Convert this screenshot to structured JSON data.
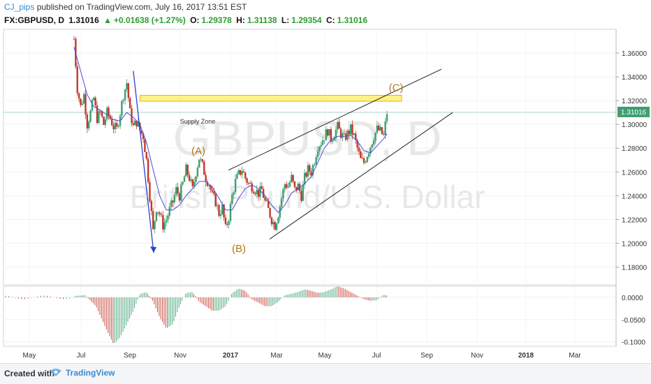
{
  "header": {
    "username": "CJ_pips",
    "published_text": " published on TradingView.com, July 16, 2017 13:51 EST",
    "symbol": "FX:GBPUSD, D",
    "last": "1.31016",
    "change": "+0.01638 (+1.27%)",
    "o_label": "O:",
    "o_value": "1.29378",
    "h_label": "H:",
    "h_value": "1.31138",
    "l_label": "L:",
    "l_value": "1.29354",
    "c_label": "C:",
    "c_value": "1.31016"
  },
  "watermark": {
    "symbol": "GBPUSD, D",
    "description": "British Pound/U.S. Dollar"
  },
  "annotations": {
    "supply_zone": "Supply Zone",
    "wave_a": "(A)",
    "wave_b": "(B)",
    "wave_c": "(C)"
  },
  "footer": {
    "created_with": "Created with",
    "brand": "TradingView"
  },
  "colors": {
    "up_candle": "#3d9e70",
    "down_candle": "#c0392b",
    "ma_line": "#4a4fd8",
    "arrow": "#2a3fd0",
    "supply_fill": "#fff176",
    "supply_border": "#f0a020",
    "wave_label": "#b8741a",
    "trendline": "#222222",
    "price_line": "#a8d3c8"
  },
  "chart_data": {
    "type": "candlestick",
    "price_axis": {
      "ticks": [
        "1.36000",
        "1.34000",
        "1.32000",
        "1.30000",
        "1.28000",
        "1.26000",
        "1.24000",
        "1.22000",
        "1.20000",
        "1.18000"
      ],
      "tick_values": [
        1.36,
        1.34,
        1.32,
        1.3,
        1.28,
        1.26,
        1.24,
        1.22,
        1.2,
        1.18
      ],
      "range": [
        1.165,
        1.38
      ],
      "current_price": "1.31016",
      "current_value": 1.31016
    },
    "indicator_axis": {
      "ticks": [
        "0.0000",
        "-0.0500",
        "-0.1000"
      ],
      "tick_values": [
        0.0,
        -0.05,
        -0.1
      ],
      "range": [
        -0.11,
        0.025
      ]
    },
    "time_axis": {
      "labels": [
        "May",
        "Jul",
        "Sep",
        "Nov",
        "2017",
        "Mar",
        "May",
        "Jul",
        "Sep",
        "Nov",
        "2018",
        "Mar"
      ],
      "bold": [
        false,
        false,
        false,
        false,
        true,
        false,
        false,
        false,
        false,
        false,
        true,
        false
      ]
    },
    "close_path": [
      [
        0,
        1.372
      ],
      [
        3,
        1.33
      ],
      [
        6,
        1.315
      ],
      [
        9,
        1.325
      ],
      [
        12,
        1.3
      ],
      [
        15,
        1.31
      ],
      [
        18,
        1.322
      ],
      [
        21,
        1.305
      ],
      [
        24,
        1.31
      ],
      [
        27,
        1.3
      ],
      [
        30,
        1.31
      ],
      [
        33,
        1.305
      ],
      [
        36,
        1.298
      ],
      [
        39,
        1.296
      ],
      [
        42,
        1.31
      ],
      [
        45,
        1.325
      ],
      [
        48,
        1.335
      ],
      [
        51,
        1.31
      ],
      [
        54,
        1.298
      ],
      [
        57,
        1.302
      ],
      [
        60,
        1.295
      ],
      [
        63,
        1.29
      ],
      [
        66,
        1.27
      ],
      [
        69,
        1.24
      ],
      [
        72,
        1.21
      ],
      [
        75,
        1.23
      ],
      [
        78,
        1.225
      ],
      [
        81,
        1.215
      ],
      [
        84,
        1.22
      ],
      [
        87,
        1.228
      ],
      [
        90,
        1.235
      ],
      [
        93,
        1.245
      ],
      [
        96,
        1.24
      ],
      [
        99,
        1.25
      ],
      [
        102,
        1.262
      ],
      [
        105,
        1.255
      ],
      [
        108,
        1.245
      ],
      [
        111,
        1.26
      ],
      [
        114,
        1.272
      ],
      [
        117,
        1.265
      ],
      [
        120,
        1.255
      ],
      [
        123,
        1.25
      ],
      [
        126,
        1.24
      ],
      [
        129,
        1.235
      ],
      [
        132,
        1.225
      ],
      [
        135,
        1.23
      ],
      [
        138,
        1.212
      ],
      [
        141,
        1.222
      ],
      [
        144,
        1.24
      ],
      [
        147,
        1.252
      ],
      [
        150,
        1.258
      ],
      [
        153,
        1.262
      ],
      [
        156,
        1.255
      ],
      [
        159,
        1.25
      ],
      [
        162,
        1.248
      ],
      [
        165,
        1.245
      ],
      [
        168,
        1.242
      ],
      [
        171,
        1.245
      ],
      [
        174,
        1.235
      ],
      [
        177,
        1.228
      ],
      [
        180,
        1.22
      ],
      [
        183,
        1.215
      ],
      [
        186,
        1.225
      ],
      [
        189,
        1.238
      ],
      [
        192,
        1.25
      ],
      [
        195,
        1.248
      ],
      [
        198,
        1.255
      ],
      [
        201,
        1.245
      ],
      [
        204,
        1.248
      ],
      [
        207,
        1.24
      ],
      [
        210,
        1.255
      ],
      [
        213,
        1.262
      ],
      [
        216,
        1.26
      ],
      [
        219,
        1.27
      ],
      [
        222,
        1.282
      ],
      [
        225,
        1.285
      ],
      [
        228,
        1.29
      ],
      [
        231,
        1.295
      ],
      [
        234,
        1.288
      ],
      [
        237,
        1.292
      ],
      [
        240,
        1.298
      ],
      [
        243,
        1.292
      ],
      [
        246,
        1.288
      ],
      [
        249,
        1.292
      ],
      [
        252,
        1.296
      ],
      [
        255,
        1.29
      ],
      [
        258,
        1.28
      ],
      [
        261,
        1.27
      ],
      [
        264,
        1.268
      ],
      [
        267,
        1.275
      ],
      [
        270,
        1.282
      ],
      [
        273,
        1.29
      ],
      [
        276,
        1.296
      ],
      [
        279,
        1.294
      ],
      [
        282,
        1.29
      ],
      [
        285,
        1.31
      ]
    ],
    "ma_path": [
      [
        0,
        1.365
      ],
      [
        6,
        1.345
      ],
      [
        12,
        1.325
      ],
      [
        18,
        1.315
      ],
      [
        24,
        1.312
      ],
      [
        30,
        1.308
      ],
      [
        36,
        1.304
      ],
      [
        42,
        1.303
      ],
      [
        48,
        1.31
      ],
      [
        54,
        1.306
      ],
      [
        60,
        1.3
      ],
      [
        66,
        1.285
      ],
      [
        72,
        1.262
      ],
      [
        78,
        1.24
      ],
      [
        84,
        1.228
      ],
      [
        90,
        1.228
      ],
      [
        96,
        1.232
      ],
      [
        102,
        1.24
      ],
      [
        108,
        1.246
      ],
      [
        114,
        1.252
      ],
      [
        120,
        1.252
      ],
      [
        126,
        1.247
      ],
      [
        132,
        1.238
      ],
      [
        138,
        1.228
      ],
      [
        144,
        1.228
      ],
      [
        150,
        1.238
      ],
      [
        156,
        1.246
      ],
      [
        162,
        1.249
      ],
      [
        168,
        1.246
      ],
      [
        174,
        1.24
      ],
      [
        180,
        1.232
      ],
      [
        186,
        1.226
      ],
      [
        192,
        1.232
      ],
      [
        198,
        1.242
      ],
      [
        204,
        1.246
      ],
      [
        210,
        1.25
      ],
      [
        216,
        1.256
      ],
      [
        222,
        1.268
      ],
      [
        228,
        1.28
      ],
      [
        234,
        1.287
      ],
      [
        240,
        1.29
      ],
      [
        246,
        1.29
      ],
      [
        252,
        1.291
      ],
      [
        258,
        1.286
      ],
      [
        264,
        1.278
      ],
      [
        270,
        1.276
      ],
      [
        276,
        1.282
      ],
      [
        282,
        1.288
      ],
      [
        285,
        1.292
      ]
    ],
    "histogram_envelope": [
      [
        0,
        0.003
      ],
      [
        10,
        0.005
      ],
      [
        20,
        -0.02
      ],
      [
        30,
        -0.075
      ],
      [
        36,
        -0.105
      ],
      [
        42,
        -0.09
      ],
      [
        48,
        -0.06
      ],
      [
        54,
        -0.03
      ],
      [
        60,
        0.008
      ],
      [
        66,
        0.012
      ],
      [
        72,
        -0.01
      ],
      [
        78,
        -0.045
      ],
      [
        84,
        -0.07
      ],
      [
        90,
        -0.06
      ],
      [
        96,
        -0.02
      ],
      [
        102,
        0.01
      ],
      [
        108,
        0.012
      ],
      [
        114,
        -0.01
      ],
      [
        120,
        -0.02
      ],
      [
        126,
        -0.03
      ],
      [
        132,
        -0.03
      ],
      [
        138,
        -0.02
      ],
      [
        144,
        0.01
      ],
      [
        150,
        0.02
      ],
      [
        156,
        0.015
      ],
      [
        162,
        -0.005
      ],
      [
        168,
        -0.012
      ],
      [
        174,
        -0.02
      ],
      [
        180,
        -0.02
      ],
      [
        186,
        -0.01
      ],
      [
        192,
        0.005
      ],
      [
        198,
        0.008
      ],
      [
        204,
        0.012
      ],
      [
        210,
        0.018
      ],
      [
        216,
        0.015
      ],
      [
        222,
        0.01
      ],
      [
        228,
        0.012
      ],
      [
        234,
        0.018
      ],
      [
        240,
        0.025
      ],
      [
        246,
        0.02
      ],
      [
        252,
        0.012
      ],
      [
        258,
        0.004
      ],
      [
        264,
        -0.004
      ],
      [
        270,
        -0.008
      ],
      [
        276,
        -0.006
      ],
      [
        282,
        0.006
      ],
      [
        285,
        0.004
      ]
    ]
  }
}
